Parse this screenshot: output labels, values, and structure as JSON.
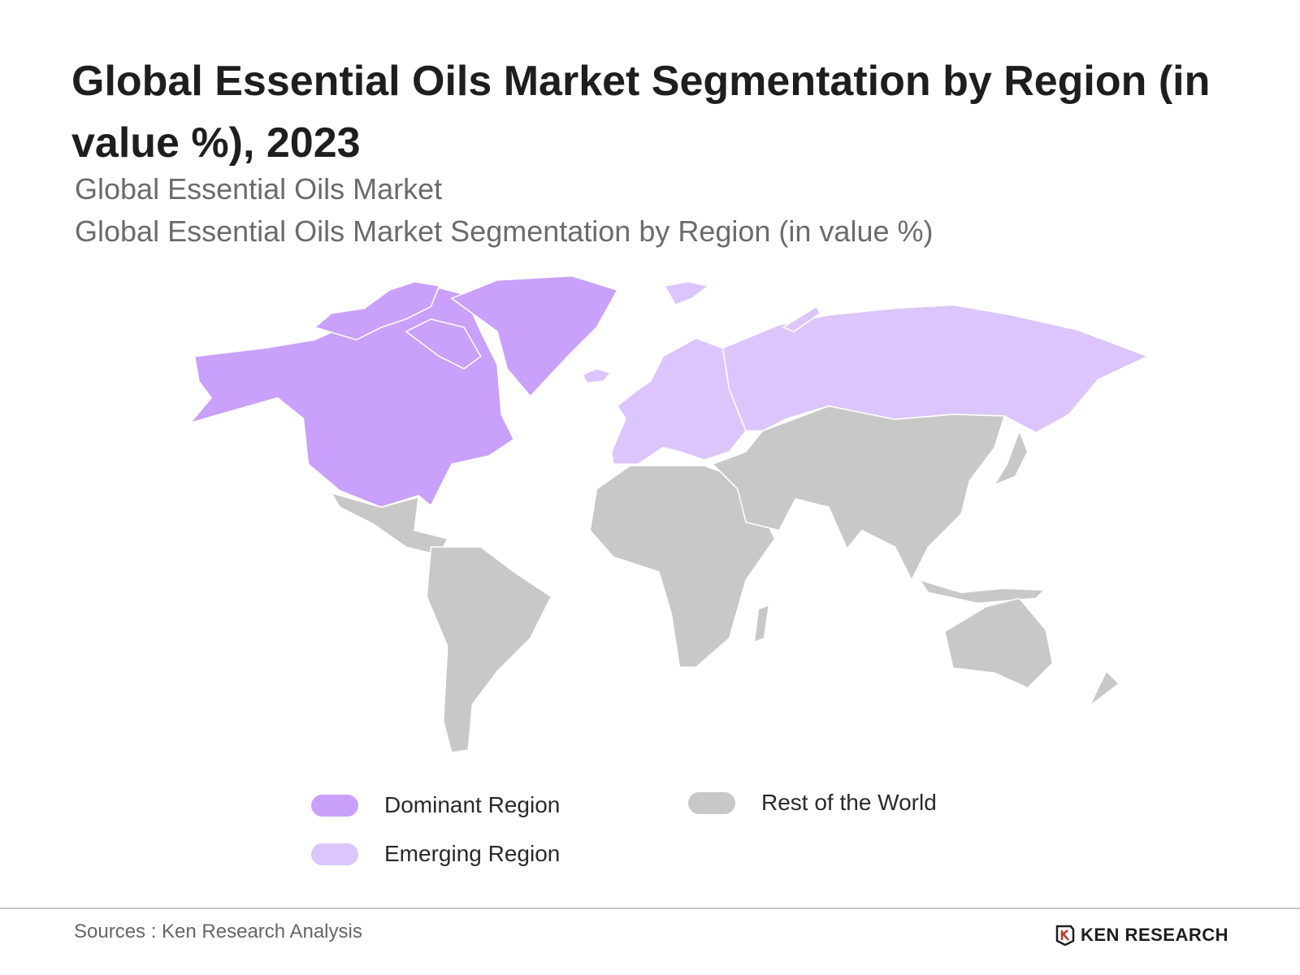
{
  "header": {
    "title": "Global Essential Oils Market Segmentation by Region (in value %), 2023",
    "subtitles": [
      "Global Essential Oils Market",
      "Global Essential Oils Market Segmentation by Region (in value %)"
    ]
  },
  "legend": [
    {
      "label": "Dominant Region",
      "color": "#c9a0fb"
    },
    {
      "label": "Emerging Region",
      "color": "#dcc5fc"
    },
    {
      "label": "Rest of the World",
      "color": "#c8c8c8"
    }
  ],
  "footer": {
    "source": "Sources : Ken Research Analysis",
    "logo": "KEN RESEARCH"
  }
}
